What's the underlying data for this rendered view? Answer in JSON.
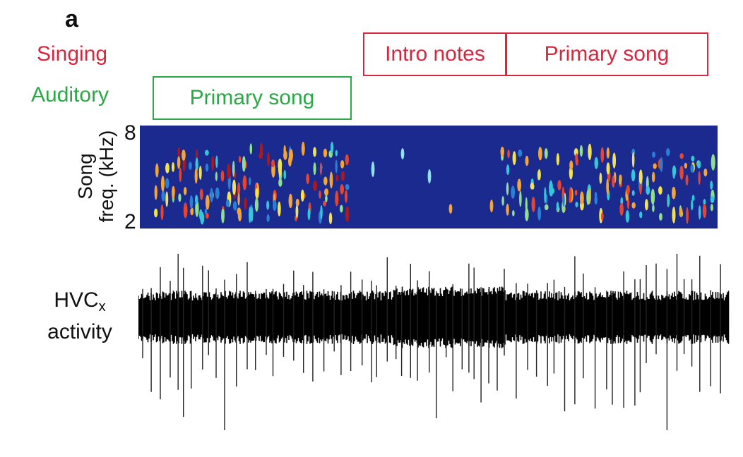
{
  "figure": {
    "panel_letter": "a",
    "rows": {
      "singing": "Singing",
      "auditory": "Auditory"
    },
    "singing_segments": [
      "Intro notes",
      "Primary song"
    ],
    "auditory_segment": "Primary song",
    "spectrogram": {
      "ylabel_line1": "Song",
      "ylabel_line2": "freq. (kHz)",
      "ytick_top": "8",
      "ytick_bottom": "2",
      "background_color": "#1b2a8f"
    },
    "activity": {
      "label_main": "HVC",
      "label_sub": "x",
      "label_line2": "activity",
      "trace_color": "#000000"
    }
  }
}
